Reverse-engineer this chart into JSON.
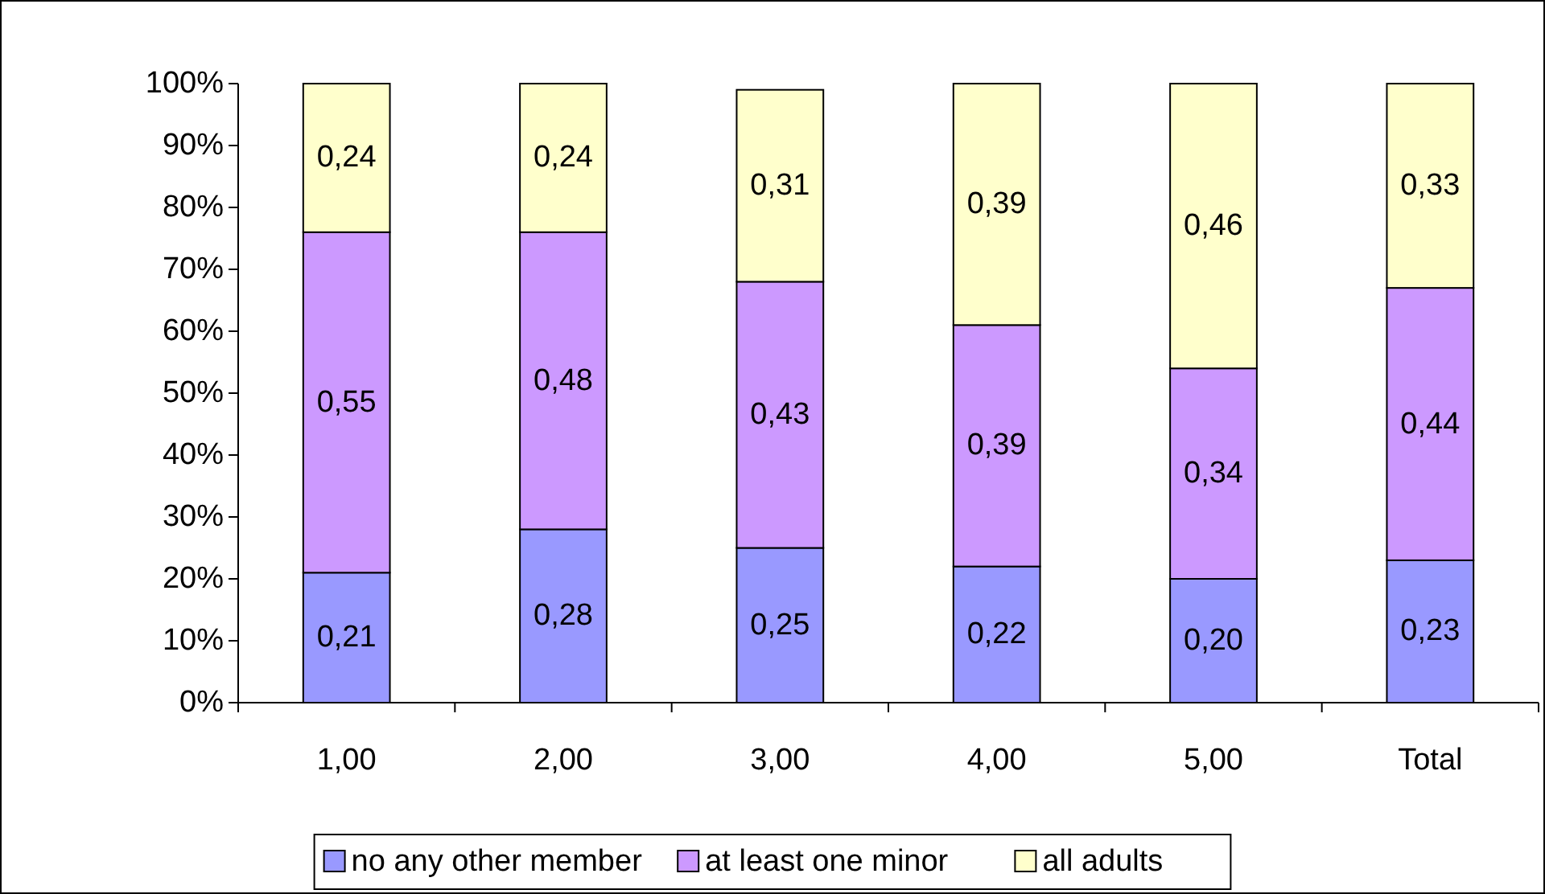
{
  "chart_data": {
    "type": "bar",
    "stacked": true,
    "categories": [
      "1,00",
      "2,00",
      "3,00",
      "4,00",
      "5,00",
      "Total"
    ],
    "series": [
      {
        "name": "no any other member",
        "color": "#9999ff",
        "values": [
          0.21,
          0.28,
          0.25,
          0.22,
          0.2,
          0.23
        ],
        "value_labels": [
          "0,21",
          "0,28",
          "0,25",
          "0,22",
          "0,20",
          "0,23"
        ]
      },
      {
        "name": "at least one minor",
        "color": "#cc99ff",
        "values": [
          0.55,
          0.48,
          0.43,
          0.39,
          0.34,
          0.44
        ],
        "value_labels": [
          "0,55",
          "0,48",
          "0,43",
          "0,39",
          "0,34",
          "0,44"
        ]
      },
      {
        "name": "all adults",
        "color": "#ffffcc",
        "values": [
          0.24,
          0.24,
          0.31,
          0.39,
          0.46,
          0.33
        ],
        "value_labels": [
          "0,24",
          "0,24",
          "0,31",
          "0,39",
          "0,46",
          "0,33"
        ]
      }
    ],
    "ylim": [
      0,
      1
    ],
    "yticks": [
      {
        "value": 0,
        "label": "0%"
      },
      {
        "value": 0.1,
        "label": "10%"
      },
      {
        "value": 0.2,
        "label": "20%"
      },
      {
        "value": 0.3,
        "label": "30%"
      },
      {
        "value": 0.4,
        "label": "40%"
      },
      {
        "value": 0.5,
        "label": "50%"
      },
      {
        "value": 0.6,
        "label": "60%"
      },
      {
        "value": 0.7,
        "label": "70%"
      },
      {
        "value": 0.8,
        "label": "80%"
      },
      {
        "value": 0.9,
        "label": "90%"
      },
      {
        "value": 1,
        "label": "100%"
      }
    ],
    "grid": false,
    "legend": "bottom"
  }
}
